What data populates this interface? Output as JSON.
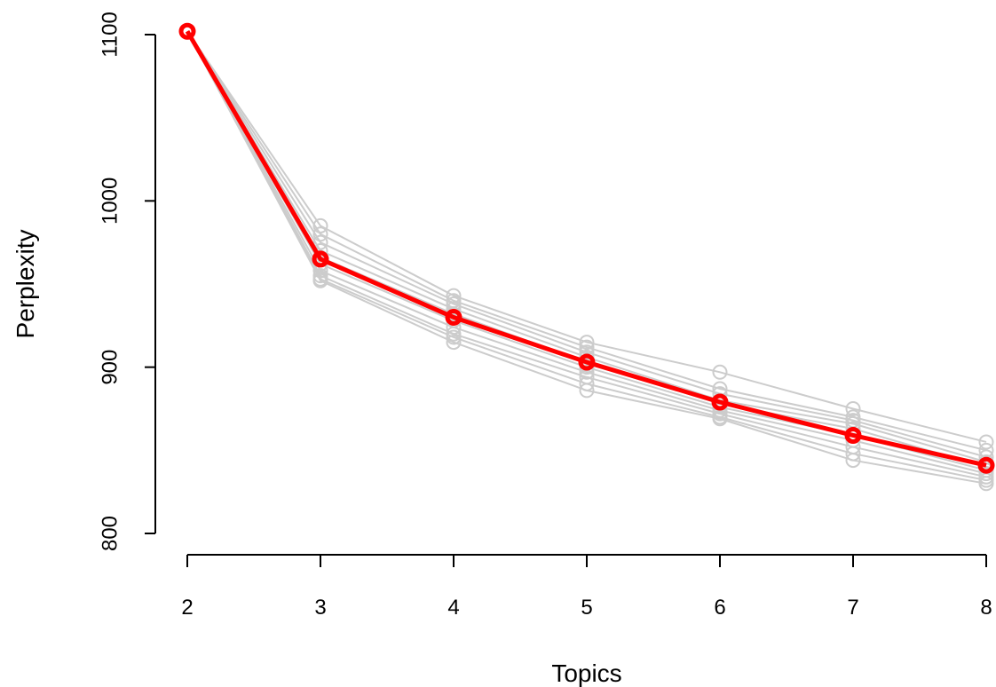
{
  "chart_data": {
    "type": "line",
    "xlabel": "Topics",
    "ylabel": "Perplexity",
    "x": [
      2,
      3,
      4,
      5,
      6,
      7,
      8
    ],
    "x_ticks": [
      2,
      3,
      4,
      5,
      6,
      7,
      8
    ],
    "y_ticks": [
      800,
      900,
      1000,
      1100
    ],
    "ylim": [
      800,
      1100
    ],
    "grid": false,
    "legend": "none",
    "colors": {
      "runs": "#cccccc",
      "mean": "#ff0000"
    },
    "series": [
      {
        "values": [
          1102,
          985,
          943,
          915,
          897,
          875,
          855
        ]
      },
      {
        "values": [
          1102,
          980,
          940,
          912,
          887,
          870,
          850
        ]
      },
      {
        "values": [
          1102,
          975,
          938,
          909,
          884,
          868,
          846
        ]
      },
      {
        "values": [
          1102,
          970,
          935,
          906,
          880,
          866,
          843
        ]
      },
      {
        "values": [
          1102,
          966,
          932,
          903,
          878,
          863,
          840
        ]
      },
      {
        "values": [
          1102,
          962,
          928,
          900,
          876,
          859,
          838
        ]
      },
      {
        "values": [
          1102,
          958,
          924,
          897,
          874,
          856,
          836
        ]
      },
      {
        "values": [
          1102,
          955,
          920,
          894,
          872,
          852,
          834
        ]
      },
      {
        "values": [
          1102,
          953,
          918,
          890,
          870,
          848,
          832
        ]
      },
      {
        "values": [
          1102,
          952,
          915,
          886,
          869,
          844,
          830
        ]
      },
      {
        "values": [
          1102,
          965,
          930,
          903,
          879,
          859,
          841
        ],
        "highlight": true
      }
    ]
  }
}
